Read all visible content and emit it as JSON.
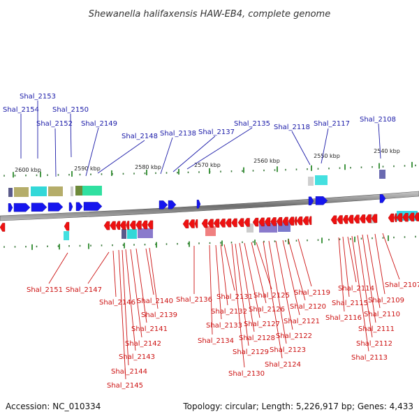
{
  "title": "Shewanella halifaxensis HAW-EB4, complete genome",
  "footer": {
    "accession": "Accession: NC_010334",
    "summary": "Topology: circular; Length: 5,226,917 bp; Genes: 4,433"
  },
  "colors": {
    "forward_gene": "#1515ee",
    "reverse_gene": "#ee1111",
    "label_forward": "#1a1aa8",
    "label_reverse": "#cc1111",
    "backbone": "#8a8a8a",
    "tick_major": "#2e8b2e",
    "tick_minor": "#3a7a3a"
  },
  "axis": {
    "ticks": [
      {
        "label": "2600 kbp"
      },
      {
        "label": "2590 kbp"
      },
      {
        "label": "2580 kbp"
      },
      {
        "label": "2570 kbp"
      },
      {
        "label": "2560 kbp"
      },
      {
        "label": "2550 kbp"
      },
      {
        "label": "2540 kbp"
      }
    ]
  },
  "top_labels": [
    {
      "text": "Shal_2153"
    },
    {
      "text": "Shal_2154"
    },
    {
      "text": "Shal_2150"
    },
    {
      "text": "Shal_2152"
    },
    {
      "text": "Shal_2149"
    },
    {
      "text": "Shal_2148"
    },
    {
      "text": "Shal_2138"
    },
    {
      "text": "Shal_2137"
    },
    {
      "text": "Shal_2135"
    },
    {
      "text": "Shal_2118"
    },
    {
      "text": "Shal_2117"
    },
    {
      "text": "Shal_2108"
    }
  ],
  "bottom_labels": [
    {
      "text": "Shal_2151"
    },
    {
      "text": "Shal_2147"
    },
    {
      "text": "Shal_2146"
    },
    {
      "text": "Shal_2145"
    },
    {
      "text": "Shal_2144"
    },
    {
      "text": "Shal_2143"
    },
    {
      "text": "Shal_2142"
    },
    {
      "text": "Shal_2141"
    },
    {
      "text": "Shal_2140"
    },
    {
      "text": "Shal_2139"
    },
    {
      "text": "Shal_2136"
    },
    {
      "text": "Shal_2134"
    },
    {
      "text": "Shal_2133"
    },
    {
      "text": "Shal_2132"
    },
    {
      "text": "Shal_2131"
    },
    {
      "text": "Shal_2130"
    },
    {
      "text": "Shal_2129"
    },
    {
      "text": "Shal_2128"
    },
    {
      "text": "Shal_2127"
    },
    {
      "text": "Shal_2126"
    },
    {
      "text": "Shal_2125"
    },
    {
      "text": "Shal_2124"
    },
    {
      "text": "Shal_2123"
    },
    {
      "text": "Shal_2122"
    },
    {
      "text": "Shal_2121"
    },
    {
      "text": "Shal_2120"
    },
    {
      "text": "Shal_2119"
    },
    {
      "text": "Shal_2116"
    },
    {
      "text": "Shal_2115"
    },
    {
      "text": "Shal_2114"
    },
    {
      "text": "Shal_2113"
    },
    {
      "text": "Shal_2112"
    },
    {
      "text": "Shal_2111"
    },
    {
      "text": "Shal_2110"
    },
    {
      "text": "Shal_2109"
    },
    {
      "text": "Shal_2107"
    }
  ]
}
